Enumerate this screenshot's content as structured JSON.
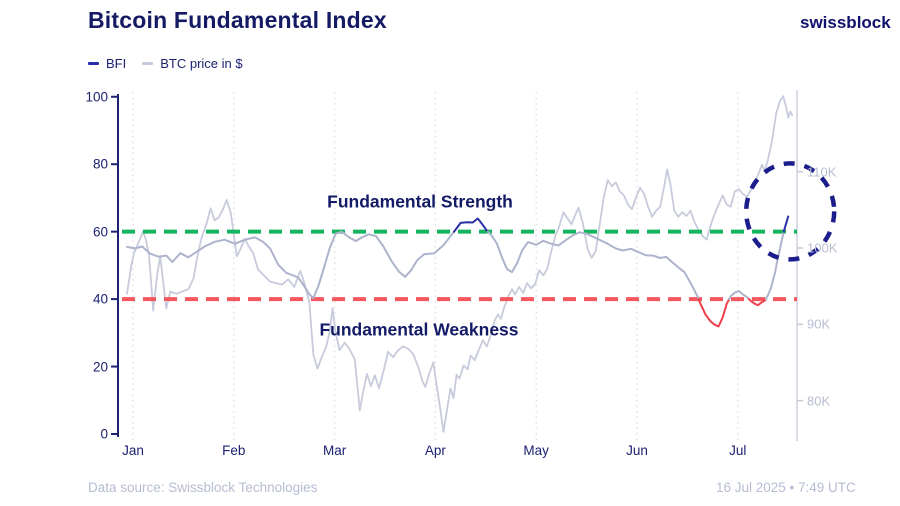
{
  "header": {
    "title": "Bitcoin Fundamental Index",
    "logo": "swissblock"
  },
  "legend": [
    {
      "label": "BFI",
      "color": "#262da8"
    },
    {
      "label": "BTC price in $",
      "color": "#c7cbdc"
    }
  ],
  "footer": {
    "source": "Data source: Swissblock Technologies",
    "timestamp": "16 Jul 2025 • 7:49 UTC"
  },
  "colors": {
    "title_navy": "#141a63",
    "axis_navy": "#1c2270",
    "bfi_gray": "#adb3cb",
    "bfi_navy": "#2a2fa5",
    "bfi_red": "#ef404b",
    "btc_gray": "#c7cbdc",
    "strength_green": "#15b45e",
    "weakness_red": "#f6575e",
    "circle_navy": "#1c1d8c",
    "muted_label": "#b9bed2"
  },
  "chart_data": {
    "type": "line",
    "title": "Bitcoin Fundamental Index",
    "x_axis": {
      "tick_labels": [
        "Jan",
        "Feb",
        "Mar",
        "Apr",
        "May",
        "Jun",
        "Jul"
      ]
    },
    "y_left": {
      "ticks": [
        0,
        20,
        40,
        60,
        80,
        100
      ],
      "range": [
        0,
        100
      ],
      "series": "BFI"
    },
    "y_right": {
      "ticks": [
        "80K",
        "90K",
        "100K",
        "110K"
      ],
      "series": "BTC price in $"
    },
    "thresholds": {
      "strength": {
        "value": 60,
        "label": "Fundamental Strength",
        "color": "#15b45e"
      },
      "weakness": {
        "value": 40,
        "label": "Fundamental Weakness",
        "color": "#f6575e"
      }
    },
    "annotations": {
      "circle": {
        "x_month": 6.52,
        "y_price_k": 104.8,
        "meaning": "highlight of latest BFI breakout and BTC price"
      }
    },
    "series": [
      {
        "name": "BFI",
        "axis": "left",
        "color_normal": "#adb3cb",
        "color_above_60": "#2a2fa5",
        "color_below_40": "#ef404b",
        "points": [
          [
            -0.06,
            55.5
          ],
          [
            0.02,
            55
          ],
          [
            0.09,
            55.6
          ],
          [
            0.17,
            53.5
          ],
          [
            0.25,
            52.6
          ],
          [
            0.33,
            52.9
          ],
          [
            0.39,
            51
          ],
          [
            0.47,
            53.6
          ],
          [
            0.55,
            52.4
          ],
          [
            0.63,
            54
          ],
          [
            0.71,
            55.6
          ],
          [
            0.81,
            57
          ],
          [
            0.91,
            57.6
          ],
          [
            1.01,
            56.4
          ],
          [
            1.11,
            57.6
          ],
          [
            1.21,
            58.3
          ],
          [
            1.29,
            57
          ],
          [
            1.36,
            55
          ],
          [
            1.44,
            50.2
          ],
          [
            1.52,
            47.8
          ],
          [
            1.59,
            47
          ],
          [
            1.64,
            46.4
          ],
          [
            1.7,
            43.8
          ],
          [
            1.75,
            41.4
          ],
          [
            1.79,
            40.3
          ],
          [
            1.84,
            44
          ],
          [
            1.89,
            48.8
          ],
          [
            1.95,
            55
          ],
          [
            2.01,
            59.4
          ],
          [
            2.07,
            60
          ],
          [
            2.14,
            58.4
          ],
          [
            2.21,
            57.2
          ],
          [
            2.27,
            58.3
          ],
          [
            2.34,
            59.2
          ],
          [
            2.41,
            58.7
          ],
          [
            2.48,
            55.8
          ],
          [
            2.57,
            51
          ],
          [
            2.64,
            48.1
          ],
          [
            2.7,
            46.6
          ],
          [
            2.76,
            48.6
          ],
          [
            2.82,
            51.6
          ],
          [
            2.89,
            53.3
          ],
          [
            2.99,
            53.6
          ],
          [
            3.08,
            56
          ],
          [
            3.2,
            60.6
          ],
          [
            3.25,
            62.6
          ],
          [
            3.31,
            62.8
          ],
          [
            3.37,
            62.7
          ],
          [
            3.42,
            63.9
          ],
          [
            3.46,
            62.4
          ],
          [
            3.51,
            60.3
          ],
          [
            3.56,
            58.8
          ],
          [
            3.61,
            56.5
          ],
          [
            3.66,
            52.4
          ],
          [
            3.71,
            48.9
          ],
          [
            3.76,
            48
          ],
          [
            3.81,
            50.6
          ],
          [
            3.86,
            54.4
          ],
          [
            3.92,
            56.9
          ],
          [
            4.0,
            56.1
          ],
          [
            4.07,
            57.3
          ],
          [
            4.15,
            56.4
          ],
          [
            4.22,
            55.9
          ],
          [
            4.3,
            57.6
          ],
          [
            4.37,
            59
          ],
          [
            4.43,
            59.8
          ],
          [
            4.5,
            59.4
          ],
          [
            4.57,
            58.4
          ],
          [
            4.64,
            57.4
          ],
          [
            4.71,
            56.4
          ],
          [
            4.79,
            55
          ],
          [
            4.86,
            54.4
          ],
          [
            4.94,
            54.9
          ],
          [
            5.01,
            54
          ],
          [
            5.09,
            53
          ],
          [
            5.16,
            52.9
          ],
          [
            5.23,
            52.2
          ],
          [
            5.29,
            52.5
          ],
          [
            5.35,
            50.9
          ],
          [
            5.41,
            49.4
          ],
          [
            5.47,
            48
          ],
          [
            5.52,
            45.4
          ],
          [
            5.56,
            43.2
          ],
          [
            5.6,
            40.8
          ],
          [
            5.63,
            38.6
          ],
          [
            5.68,
            35.4
          ],
          [
            5.73,
            33.4
          ],
          [
            5.77,
            32.4
          ],
          [
            5.81,
            31.9
          ],
          [
            5.85,
            34.6
          ],
          [
            5.89,
            38.6
          ],
          [
            5.93,
            40.9
          ],
          [
            5.97,
            41.9
          ],
          [
            6.01,
            42.4
          ],
          [
            6.05,
            41.4
          ],
          [
            6.09,
            40.6
          ],
          [
            6.13,
            39.4
          ],
          [
            6.17,
            38.6
          ],
          [
            6.2,
            38.2
          ],
          [
            6.23,
            38.9
          ],
          [
            6.27,
            39.6
          ],
          [
            6.3,
            41.2
          ],
          [
            6.33,
            43.4
          ],
          [
            6.37,
            48
          ],
          [
            6.4,
            52.5
          ],
          [
            6.43,
            56.5
          ],
          [
            6.46,
            60.5
          ],
          [
            6.48,
            62.5
          ],
          [
            6.5,
            64.5
          ]
        ]
      },
      {
        "name": "BTC price in $",
        "axis": "right",
        "color": "#c7cbdc",
        "unit": "K USD",
        "points": [
          [
            -0.06,
            94
          ],
          [
            -0.02,
            97.5
          ],
          [
            0.01,
            99.3
          ],
          [
            0.07,
            101.2
          ],
          [
            0.1,
            102.2
          ],
          [
            0.13,
            101
          ],
          [
            0.16,
            99
          ],
          [
            0.2,
            91.8
          ],
          [
            0.24,
            96.5
          ],
          [
            0.27,
            98.9
          ],
          [
            0.3,
            95.5
          ],
          [
            0.33,
            92.1
          ],
          [
            0.37,
            94.3
          ],
          [
            0.43,
            94
          ],
          [
            0.49,
            94.3
          ],
          [
            0.55,
            94.6
          ],
          [
            0.6,
            96
          ],
          [
            0.64,
            99
          ],
          [
            0.68,
            101.3
          ],
          [
            0.73,
            103.2
          ],
          [
            0.77,
            105.2
          ],
          [
            0.81,
            103.6
          ],
          [
            0.85,
            104
          ],
          [
            0.89,
            105
          ],
          [
            0.93,
            106.3
          ],
          [
            0.97,
            104.6
          ],
          [
            1.03,
            98.9
          ],
          [
            1.07,
            100
          ],
          [
            1.11,
            101.2
          ],
          [
            1.15,
            100.2
          ],
          [
            1.19,
            99.4
          ],
          [
            1.24,
            97.2
          ],
          [
            1.3,
            96.4
          ],
          [
            1.36,
            95.6
          ],
          [
            1.42,
            95.4
          ],
          [
            1.48,
            95.2
          ],
          [
            1.54,
            95.9
          ],
          [
            1.6,
            94.9
          ],
          [
            1.66,
            97
          ],
          [
            1.7,
            95.4
          ],
          [
            1.75,
            92.8
          ],
          [
            1.79,
            86
          ],
          [
            1.83,
            84.2
          ],
          [
            1.87,
            85.6
          ],
          [
            1.92,
            87.2
          ],
          [
            1.95,
            89
          ],
          [
            1.98,
            92.1
          ],
          [
            2.01,
            88.9
          ],
          [
            2.05,
            86.6
          ],
          [
            2.1,
            87.6
          ],
          [
            2.15,
            86.7
          ],
          [
            2.2,
            85.4
          ],
          [
            2.25,
            78.7
          ],
          [
            2.28,
            80.9
          ],
          [
            2.32,
            83.5
          ],
          [
            2.36,
            81.9
          ],
          [
            2.4,
            83.3
          ],
          [
            2.44,
            81.6
          ],
          [
            2.49,
            84.1
          ],
          [
            2.53,
            86.4
          ],
          [
            2.58,
            85.7
          ],
          [
            2.63,
            86.6
          ],
          [
            2.68,
            87.1
          ],
          [
            2.73,
            86.8
          ],
          [
            2.78,
            86.1
          ],
          [
            2.83,
            84.4
          ],
          [
            2.87,
            82.6
          ],
          [
            2.9,
            81.8
          ],
          [
            2.94,
            83.6
          ],
          [
            2.98,
            85
          ],
          [
            3.01,
            82.2
          ],
          [
            3.05,
            78.8
          ],
          [
            3.08,
            75.9
          ],
          [
            3.12,
            79.2
          ],
          [
            3.15,
            81.6
          ],
          [
            3.18,
            80.3
          ],
          [
            3.21,
            83.4
          ],
          [
            3.24,
            82.9
          ],
          [
            3.28,
            84.6
          ],
          [
            3.32,
            84.1
          ],
          [
            3.35,
            85.9
          ],
          [
            3.39,
            85.3
          ],
          [
            3.43,
            86.6
          ],
          [
            3.47,
            87.9
          ],
          [
            3.51,
            87.1
          ],
          [
            3.55,
            88.6
          ],
          [
            3.59,
            90.6
          ],
          [
            3.62,
            91.3
          ],
          [
            3.65,
            90.7
          ],
          [
            3.68,
            92.1
          ],
          [
            3.72,
            93.6
          ],
          [
            3.76,
            94.6
          ],
          [
            3.79,
            93.9
          ],
          [
            3.83,
            94.9
          ],
          [
            3.87,
            94.1
          ],
          [
            3.91,
            95.4
          ],
          [
            3.95,
            94.7
          ],
          [
            3.99,
            95.3
          ],
          [
            4.03,
            97.1
          ],
          [
            4.07,
            96.4
          ],
          [
            4.11,
            97.3
          ],
          [
            4.15,
            99.6
          ],
          [
            4.19,
            101.6
          ],
          [
            4.23,
            102.9
          ],
          [
            4.27,
            104.7
          ],
          [
            4.31,
            103.9
          ],
          [
            4.35,
            103.1
          ],
          [
            4.39,
            104.4
          ],
          [
            4.42,
            105.3
          ],
          [
            4.46,
            103.4
          ],
          [
            4.51,
            99.9
          ],
          [
            4.55,
            98.7
          ],
          [
            4.59,
            99.6
          ],
          [
            4.63,
            103.1
          ],
          [
            4.67,
            106.6
          ],
          [
            4.71,
            108.9
          ],
          [
            4.75,
            108.1
          ],
          [
            4.79,
            108.6
          ],
          [
            4.83,
            107.4
          ],
          [
            4.87,
            106.9
          ],
          [
            4.91,
            105.7
          ],
          [
            4.95,
            105.1
          ],
          [
            4.99,
            106.6
          ],
          [
            5.03,
            107.9
          ],
          [
            5.07,
            107.1
          ],
          [
            5.11,
            105.4
          ],
          [
            5.15,
            104.1
          ],
          [
            5.19,
            104.9
          ],
          [
            5.23,
            105.4
          ],
          [
            5.27,
            108.1
          ],
          [
            5.3,
            110.3
          ],
          [
            5.33,
            108.4
          ],
          [
            5.37,
            104.9
          ],
          [
            5.41,
            104.1
          ],
          [
            5.45,
            104.7
          ],
          [
            5.49,
            104.2
          ],
          [
            5.53,
            104.9
          ],
          [
            5.57,
            103.4
          ],
          [
            5.61,
            102.4
          ],
          [
            5.65,
            101.6
          ],
          [
            5.69,
            101.1
          ],
          [
            5.74,
            103.4
          ],
          [
            5.79,
            105.1
          ],
          [
            5.85,
            106.9
          ],
          [
            5.89,
            105.7
          ],
          [
            5.93,
            105.4
          ],
          [
            5.97,
            107.4
          ],
          [
            6.01,
            107.7
          ],
          [
            6.05,
            107.1
          ],
          [
            6.09,
            106.7
          ],
          [
            6.13,
            107.6
          ],
          [
            6.17,
            108.6
          ],
          [
            6.21,
            109.9
          ],
          [
            6.24,
            110.9
          ],
          [
            6.27,
            110.1
          ],
          [
            6.3,
            111.6
          ],
          [
            6.34,
            114.1
          ],
          [
            6.38,
            117.6
          ],
          [
            6.42,
            119.3
          ],
          [
            6.45,
            119.9
          ],
          [
            6.48,
            118.4
          ],
          [
            6.5,
            117.1
          ],
          [
            6.52,
            117.9
          ],
          [
            6.54,
            117.4
          ]
        ]
      }
    ]
  }
}
